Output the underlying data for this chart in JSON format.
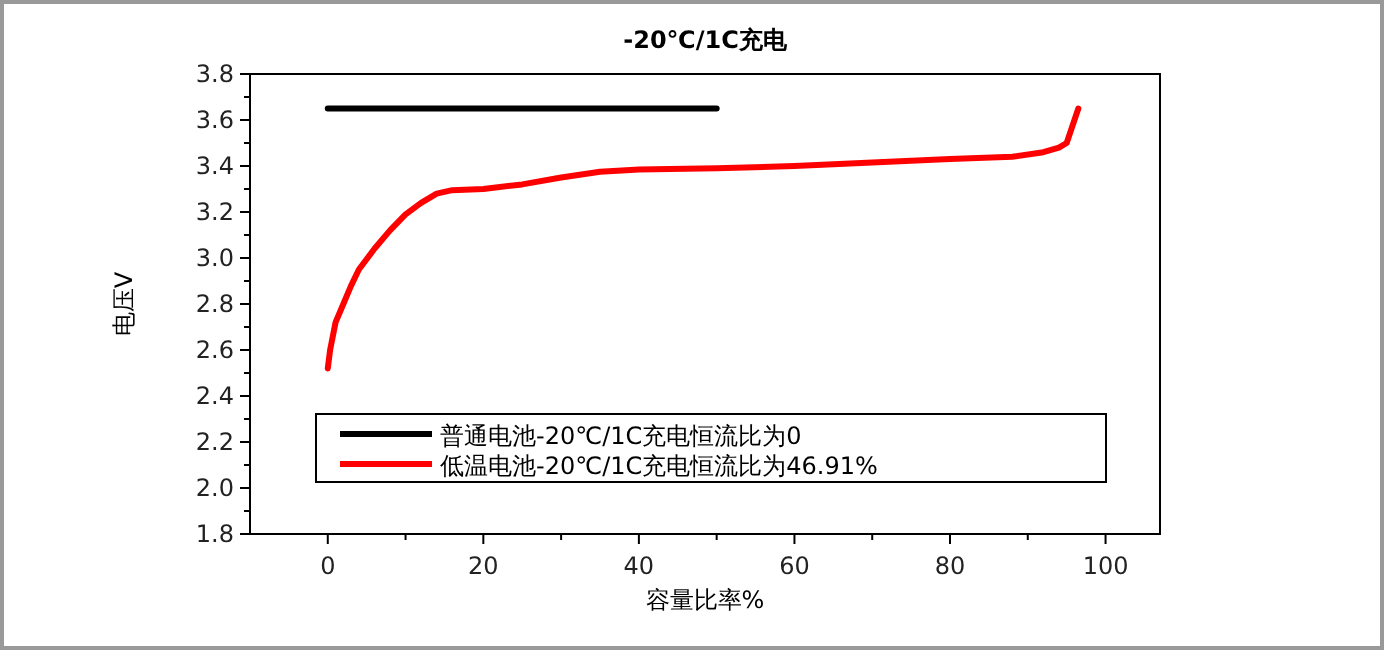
{
  "chart_data": {
    "type": "line",
    "title": "-20℃/1C充电",
    "xlabel": "容量比率%",
    "ylabel": "电压V",
    "xlim": [
      -10,
      107
    ],
    "xticks": [
      0,
      20,
      40,
      60,
      80,
      100
    ],
    "ylim": [
      1.8,
      3.8
    ],
    "yticks": [
      1.8,
      {
        "value": 2.0,
        "label": "2.0"
      },
      2.2,
      2.4,
      2.6,
      2.8,
      {
        "value": 3.0,
        "label": "3.0"
      },
      3.2,
      3.4,
      3.6,
      3.8
    ],
    "grid": false,
    "legend": "bottom",
    "marker": "none",
    "line_style": "solid",
    "series": [
      {
        "name": "普通电池-20℃/1C充电恒流比为0",
        "color": "#000000",
        "x": [
          0,
          50
        ],
        "values": [
          3.65,
          3.65
        ]
      },
      {
        "name": "低温电池-20℃/1C充电恒流比为46.91%",
        "color": "#ff0000",
        "x": [
          0,
          0.3,
          1,
          2,
          3,
          4,
          6,
          8,
          10,
          12,
          14,
          16,
          20,
          25,
          30,
          35,
          40,
          50,
          60,
          70,
          80,
          88,
          92,
          94,
          95,
          95.5,
          96,
          96.5
        ],
        "values": [
          2.52,
          2.6,
          2.72,
          2.8,
          2.88,
          2.95,
          3.04,
          3.12,
          3.19,
          3.24,
          3.28,
          3.295,
          3.3,
          3.32,
          3.35,
          3.375,
          3.385,
          3.39,
          3.4,
          3.415,
          3.43,
          3.44,
          3.46,
          3.48,
          3.5,
          3.55,
          3.6,
          3.65
        ]
      }
    ]
  }
}
